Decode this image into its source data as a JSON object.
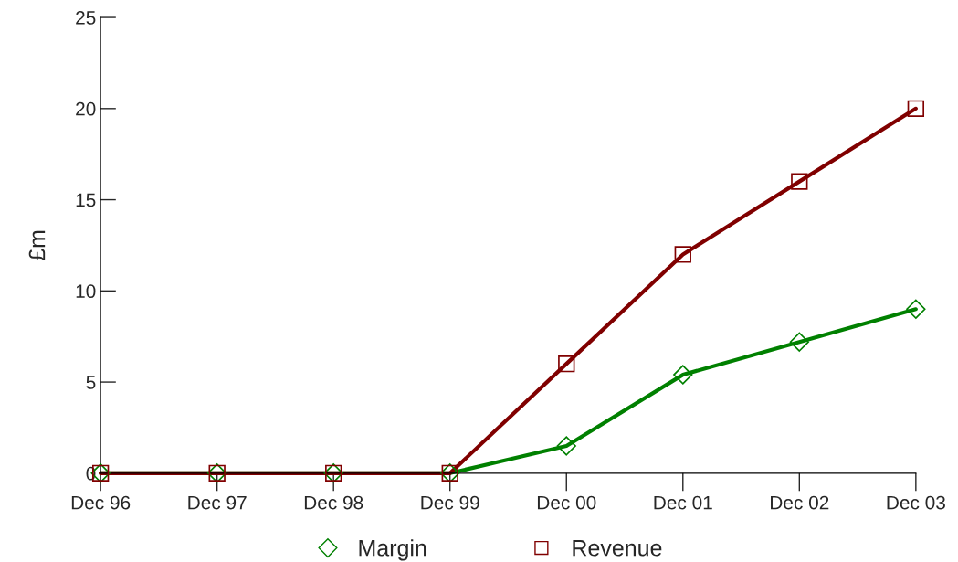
{
  "chart_data": {
    "type": "line",
    "ylabel": "£m",
    "categories": [
      "Dec 96",
      "Dec 97",
      "Dec 98",
      "Dec 99",
      "Dec 00",
      "Dec 01",
      "Dec 02",
      "Dec 03"
    ],
    "series": [
      {
        "name": "Margin",
        "color": "#008000",
        "marker": "diamond",
        "values": [
          0,
          0,
          0,
          0,
          1.5,
          5.4,
          7.2,
          9.0
        ]
      },
      {
        "name": "Revenue",
        "color": "#800000",
        "marker": "square",
        "values": [
          0,
          0,
          0,
          0,
          6,
          12,
          16,
          20
        ]
      }
    ],
    "ylim": [
      0,
      25
    ],
    "yticks": [
      0,
      5,
      10,
      15,
      20,
      25
    ],
    "legend": "bottom",
    "grid": false
  }
}
